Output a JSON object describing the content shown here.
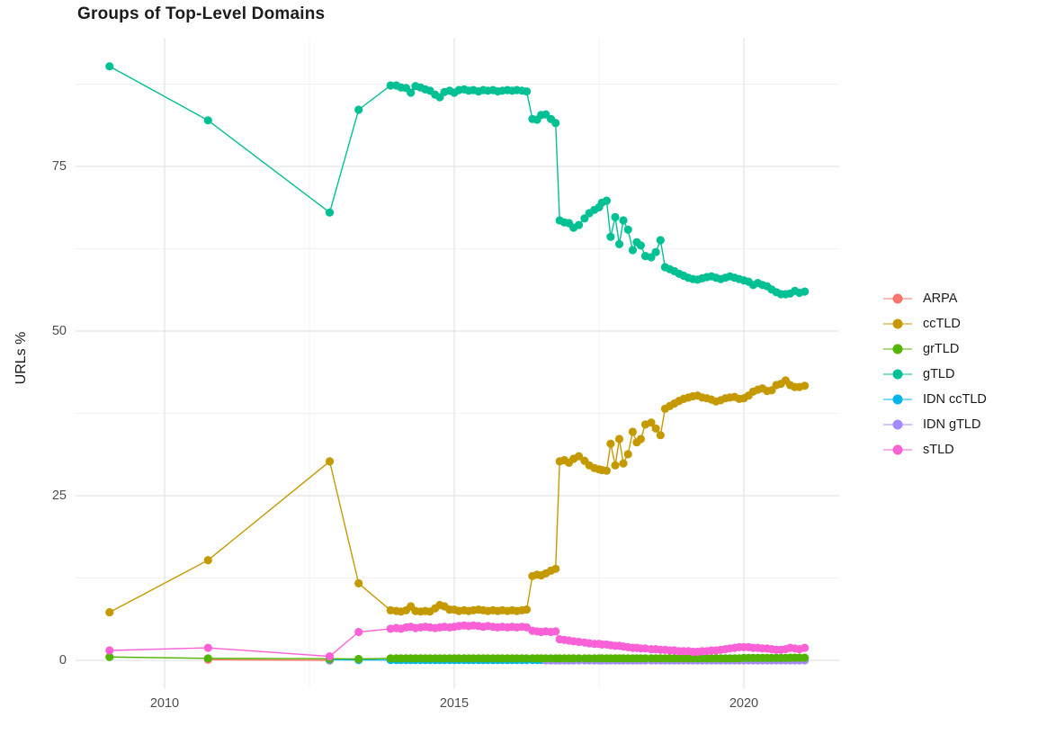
{
  "chart_data": {
    "type": "line",
    "markers": true,
    "title": "Groups of Top-Level Domains",
    "xlabel": "",
    "ylabel": "URLs %",
    "legend_position": "right",
    "grid": "on",
    "xlim": [
      2008.45,
      2021.65
    ],
    "ylim": [
      -4.2,
      94.6
    ],
    "xtick_labels": [
      "2010",
      "2015",
      "2020"
    ],
    "ytick_labels": [
      "0",
      "25",
      "50",
      "75"
    ],
    "axes": {
      "xticks": [
        2010,
        2015,
        2020
      ],
      "xminor": [
        2012.5,
        2017.5
      ],
      "yticks": [
        0,
        25,
        50,
        75
      ],
      "yminor": [
        12.5,
        37.5,
        62.5,
        87.5
      ]
    },
    "x_grids": {
      "early": [
        2009.05,
        2010.75,
        2012.85,
        2013.35
      ],
      "dense": [
        2013.9,
        2014.0,
        2014.08,
        2014.17,
        2014.25,
        2014.33,
        2014.42,
        2014.5,
        2014.58,
        2014.67,
        2014.75,
        2014.83,
        2014.92,
        2015.0,
        2015.08,
        2015.17,
        2015.25,
        2015.33,
        2015.42,
        2015.5,
        2015.58,
        2015.67,
        2015.75,
        2015.83,
        2015.92,
        2016.0,
        2016.08,
        2016.17,
        2016.25,
        2016.35,
        2016.43,
        2016.5,
        2016.58,
        2016.67,
        2016.75,
        2016.82,
        2016.9,
        2016.98,
        2017.06,
        2017.15,
        2017.25,
        2017.33,
        2017.42,
        2017.5,
        2017.55,
        2017.63,
        2017.7,
        2017.78,
        2017.85,
        2017.92,
        2018.0,
        2018.08,
        2018.15,
        2018.22,
        2018.3,
        2018.4,
        2018.48,
        2018.56,
        2018.64,
        2018.72,
        2018.8,
        2018.88,
        2018.96,
        2019.04,
        2019.12,
        2019.2,
        2019.28,
        2019.36,
        2019.44,
        2019.52,
        2019.6,
        2019.68,
        2019.76,
        2019.84,
        2019.92,
        2020.0,
        2020.08,
        2020.16,
        2020.24,
        2020.32,
        2020.4,
        2020.48,
        2020.56,
        2020.64,
        2020.72,
        2020.8,
        2020.88,
        2020.96,
        2021.05
      ]
    },
    "draw_order": [
      0,
      4,
      5,
      2,
      1,
      3,
      6
    ],
    "series": [
      {
        "name": "ARPA",
        "color": "#F8766D",
        "segments": [
          {
            "x": [
              2010.75,
              2012.85
            ],
            "y": [
              0.1,
              0.0
            ]
          }
        ]
      },
      {
        "name": "ccTLD",
        "color": "#C49A00",
        "segments": [
          {
            "grid": "early",
            "y": [
              7.3,
              15.2,
              30.2,
              11.7
            ]
          },
          {
            "grid": "dense",
            "y": [
              7.6,
              7.5,
              7.4,
              7.6,
              8.2,
              7.5,
              7.4,
              7.5,
              7.4,
              7.9,
              8.4,
              8.2,
              7.7,
              7.7,
              7.5,
              7.6,
              7.5,
              7.6,
              7.7,
              7.6,
              7.5,
              7.6,
              7.5,
              7.6,
              7.5,
              7.6,
              7.5,
              7.6,
              7.7,
              12.8,
              13.0,
              12.9,
              13.2,
              13.6,
              13.9,
              30.2,
              30.4,
              30.0,
              30.6,
              31.0,
              30.3,
              29.6,
              29.2,
              29.0,
              28.9,
              28.8,
              32.9,
              29.6,
              33.6,
              29.9,
              31.3,
              34.7,
              33.1,
              33.6,
              35.8,
              36.1,
              35.2,
              34.2,
              38.2,
              38.6,
              39.0,
              39.4,
              39.7,
              39.9,
              40.1,
              40.2,
              39.9,
              39.8,
              39.6,
              39.3,
              39.5,
              39.8,
              39.9,
              40.0,
              39.7,
              39.8,
              40.2,
              40.8,
              41.1,
              41.3,
              40.9,
              41.0,
              41.8,
              42.0,
              42.5,
              41.8,
              41.5,
              41.5,
              41.7
            ]
          }
        ]
      },
      {
        "name": "grTLD",
        "color": "#53B400",
        "segments": [
          {
            "grid": "early",
            "y": [
              0.5,
              0.3,
              0.25,
              0.2
            ]
          },
          {
            "grid": "dense",
            "y": [
              0.3,
              0.3,
              0.3,
              0.3,
              0.3,
              0.3,
              0.3,
              0.3,
              0.3,
              0.3,
              0.3,
              0.3,
              0.3,
              0.3,
              0.3,
              0.3,
              0.3,
              0.3,
              0.3,
              0.3,
              0.3,
              0.3,
              0.3,
              0.3,
              0.3,
              0.3,
              0.3,
              0.3,
              0.3,
              0.3,
              0.3,
              0.3,
              0.3,
              0.3,
              0.3,
              0.3,
              0.3,
              0.3,
              0.3,
              0.3,
              0.3,
              0.3,
              0.3,
              0.3,
              0.3,
              0.3,
              0.3,
              0.3,
              0.3,
              0.3,
              0.3,
              0.3,
              0.3,
              0.3,
              0.3,
              0.3,
              0.3,
              0.3,
              0.3,
              0.3,
              0.3,
              0.3,
              0.3,
              0.3,
              0.3,
              0.3,
              0.3,
              0.3,
              0.3,
              0.3,
              0.3,
              0.3,
              0.3,
              0.3,
              0.3,
              0.35,
              0.35,
              0.35,
              0.35,
              0.35,
              0.35,
              0.35,
              0.35,
              0.35,
              0.35,
              0.4,
              0.4,
              0.4,
              0.4
            ]
          }
        ]
      },
      {
        "name": "gTLD",
        "color": "#00C094",
        "segments": [
          {
            "grid": "early",
            "y": [
              90.2,
              82.0,
              68.0,
              83.6
            ]
          },
          {
            "grid": "dense",
            "y": [
              87.3,
              87.3,
              87.0,
              86.9,
              86.2,
              87.2,
              87.0,
              86.7,
              86.5,
              85.9,
              85.5,
              86.3,
              86.5,
              86.2,
              86.6,
              86.7,
              86.5,
              86.6,
              86.4,
              86.6,
              86.5,
              86.6,
              86.4,
              86.5,
              86.6,
              86.5,
              86.6,
              86.5,
              86.4,
              82.2,
              82.1,
              82.8,
              82.9,
              82.2,
              81.6,
              66.8,
              66.5,
              66.4,
              65.7,
              66.1,
              67.1,
              67.9,
              68.4,
              68.8,
              69.5,
              69.8,
              64.3,
              67.3,
              63.2,
              66.8,
              65.4,
              62.3,
              63.5,
              63.0,
              61.4,
              61.2,
              62.0,
              63.8,
              59.7,
              59.4,
              59.1,
              58.7,
              58.4,
              58.1,
              57.9,
              57.8,
              58.0,
              58.2,
              58.3,
              58.1,
              57.9,
              58.1,
              58.3,
              58.1,
              57.9,
              57.7,
              57.5,
              57.0,
              57.3,
              57.0,
              56.8,
              56.3,
              55.9,
              55.6,
              55.6,
              55.7,
              56.1,
              55.8,
              56.0
            ]
          }
        ]
      },
      {
        "name": "IDN ccTLD",
        "color": "#00B6EB",
        "segments": [
          {
            "grid": "early",
            "start": 2,
            "y": [
              0.1,
              0.05
            ]
          },
          {
            "grid": "dense",
            "y": [
              0.05,
              0.05,
              0.05,
              0.05,
              0.05,
              0.05,
              0.05,
              0.05,
              0.05,
              0.05,
              0.05,
              0.05,
              0.05,
              0.05,
              0.05,
              0.05,
              0.05,
              0.05,
              0.05,
              0.05,
              0.05,
              0.05,
              0.05,
              0.05,
              0.05,
              0.05,
              0.05,
              0.05,
              0.05,
              0.05,
              0.05,
              0.05,
              0.05,
              0.05,
              0.05,
              0.05,
              0.05,
              0.05,
              0.05,
              0.05,
              0.05,
              0.05,
              0.05,
              0.05,
              0.05,
              0.05,
              0.05,
              0.05,
              0.05,
              0.05,
              0.05,
              0.05,
              0.05,
              0.05,
              0.05,
              0.05,
              0.05,
              0.05,
              0.05,
              0.05,
              0.05,
              0.05,
              0.05,
              0.05,
              0.05,
              0.05,
              0.05,
              0.05,
              0.05,
              0.05,
              0.05,
              0.05,
              0.05,
              0.05,
              0.05,
              0.05,
              0.05,
              0.05,
              0.05,
              0.05,
              0.05,
              0.05,
              0.05,
              0.05,
              0.05,
              0.05,
              0.05,
              0.05,
              0.05
            ]
          }
        ]
      },
      {
        "name": "IDN gTLD",
        "color": "#A58AFF",
        "segments": [
          {
            "grid": "dense",
            "start": 32,
            "y": [
              0,
              0,
              0,
              0,
              0,
              0,
              0,
              0,
              0,
              0,
              0,
              0,
              0,
              0,
              0,
              0,
              0,
              0,
              0,
              0,
              0,
              0,
              0,
              0,
              0,
              0,
              0,
              0,
              0,
              0,
              0,
              0,
              0,
              0,
              0,
              0,
              0,
              0,
              0,
              0,
              0,
              0,
              0,
              0,
              0,
              0,
              0,
              0,
              0,
              0,
              0,
              0,
              0,
              0,
              0,
              0,
              0
            ]
          }
        ]
      },
      {
        "name": "sTLD",
        "color": "#FB61D7",
        "segments": [
          {
            "grid": "early",
            "y": [
              1.5,
              1.9,
              0.6,
              4.3
            ]
          },
          {
            "grid": "dense",
            "y": [
              4.8,
              4.9,
              4.8,
              5.0,
              5.1,
              4.9,
              5.0,
              5.1,
              5.0,
              4.9,
              5.0,
              5.1,
              5.0,
              5.1,
              5.2,
              5.3,
              5.2,
              5.3,
              5.2,
              5.1,
              5.2,
              5.1,
              5.0,
              5.1,
              5.0,
              5.1,
              5.0,
              5.1,
              5.0,
              4.5,
              4.4,
              4.3,
              4.4,
              4.3,
              4.4,
              3.2,
              3.1,
              3.0,
              2.9,
              2.8,
              2.7,
              2.6,
              2.5,
              2.5,
              2.4,
              2.4,
              2.3,
              2.2,
              2.2,
              2.1,
              2.0,
              1.9,
              1.9,
              1.8,
              1.8,
              1.7,
              1.7,
              1.6,
              1.6,
              1.5,
              1.5,
              1.4,
              1.4,
              1.4,
              1.3,
              1.3,
              1.4,
              1.4,
              1.5,
              1.5,
              1.6,
              1.7,
              1.8,
              1.9,
              2.0,
              2.0,
              2.0,
              1.9,
              1.9,
              1.8,
              1.8,
              1.7,
              1.6,
              1.6,
              1.7,
              1.9,
              1.8,
              1.7,
              1.9
            ]
          }
        ]
      }
    ]
  }
}
